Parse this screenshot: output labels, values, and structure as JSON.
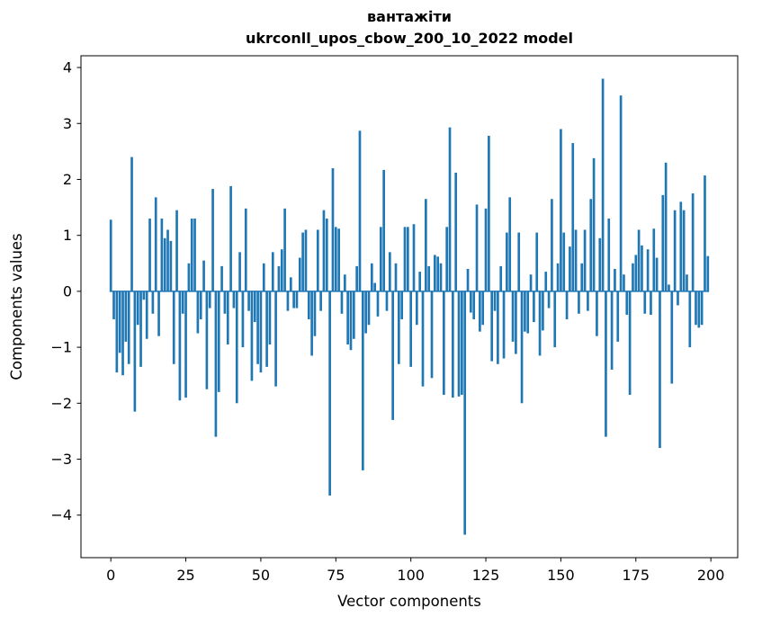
{
  "title": {
    "line1": "вантажіти",
    "line2": "ukrconll_upos_cbow_200_10_2022 model"
  },
  "chart_data": {
    "type": "bar",
    "title": "вантажіти\nukrconll_upos_cbow_200_10_2022 model",
    "xlabel": "Vector components",
    "ylabel": "Components values",
    "bar_color": "#1f77b4",
    "grid": false,
    "legend": null,
    "xlim": [
      -9.95,
      208.95
    ],
    "ylim": [
      -4.76,
      4.21
    ],
    "x_ticks": [
      0,
      25,
      50,
      75,
      100,
      125,
      150,
      175,
      200
    ],
    "y_ticks": [
      -4,
      -3,
      -2,
      -1,
      0,
      1,
      2,
      3,
      4
    ],
    "x_start": 0,
    "values": [
      1.28,
      -0.5,
      -1.45,
      -1.1,
      -1.5,
      -0.9,
      -1.3,
      2.4,
      -2.15,
      -0.6,
      -1.35,
      -0.15,
      -0.85,
      1.3,
      -0.4,
      1.68,
      -0.8,
      1.3,
      0.95,
      1.1,
      0.9,
      -1.3,
      1.45,
      -1.95,
      -0.4,
      -1.9,
      0.5,
      1.3,
      1.3,
      -0.75,
      -0.5,
      0.55,
      -1.75,
      -0.3,
      1.83,
      -2.6,
      -1.8,
      0.45,
      -0.4,
      -0.95,
      1.88,
      -0.3,
      -2.0,
      0.7,
      -1.0,
      1.48,
      -0.35,
      -1.6,
      -0.55,
      -1.3,
      -1.45,
      0.5,
      -1.35,
      -0.95,
      0.7,
      -1.7,
      0.45,
      0.75,
      1.48,
      -0.35,
      0.25,
      -0.3,
      -0.3,
      0.6,
      1.05,
      1.1,
      -0.5,
      -1.15,
      -0.8,
      1.1,
      -0.35,
      1.45,
      1.3,
      -3.65,
      2.2,
      1.15,
      1.12,
      -0.4,
      0.3,
      -0.95,
      -1.05,
      -0.85,
      0.45,
      2.87,
      -3.2,
      -0.75,
      -0.6,
      0.5,
      0.15,
      -0.45,
      1.15,
      2.17,
      -0.35,
      0.7,
      -2.3,
      0.5,
      -1.3,
      -0.5,
      1.15,
      1.15,
      -1.35,
      1.2,
      -0.6,
      0.35,
      -1.7,
      1.65,
      0.45,
      -1.55,
      0.65,
      0.62,
      0.5,
      -1.85,
      1.15,
      2.93,
      -1.9,
      2.12,
      -1.88,
      -1.85,
      -4.35,
      0.4,
      -0.38,
      -0.5,
      1.55,
      -0.72,
      -0.6,
      1.48,
      2.78,
      -1.25,
      -0.35,
      -1.3,
      0.45,
      -1.2,
      1.05,
      1.68,
      -0.9,
      -1.12,
      1.05,
      -2.0,
      -0.72,
      -0.75,
      0.3,
      -0.55,
      1.05,
      -1.15,
      -0.7,
      0.35,
      -0.3,
      1.65,
      -1.0,
      0.5,
      2.9,
      1.05,
      -0.5,
      0.8,
      2.65,
      1.1,
      -0.4,
      0.5,
      1.1,
      -0.35,
      1.65,
      2.38,
      -0.8,
      0.95,
      3.8,
      -2.6,
      1.3,
      -1.4,
      0.4,
      -0.9,
      3.5,
      0.3,
      -0.42,
      -1.85,
      0.5,
      0.65,
      1.1,
      0.82,
      -0.4,
      0.75,
      -0.42,
      1.12,
      0.6,
      -2.8,
      1.72,
      2.3,
      0.12,
      -1.65,
      1.45,
      -0.25,
      1.6,
      1.45,
      0.3,
      -1.0,
      1.75,
      -0.6,
      -0.65,
      -0.6,
      2.07,
      0.63
    ]
  }
}
